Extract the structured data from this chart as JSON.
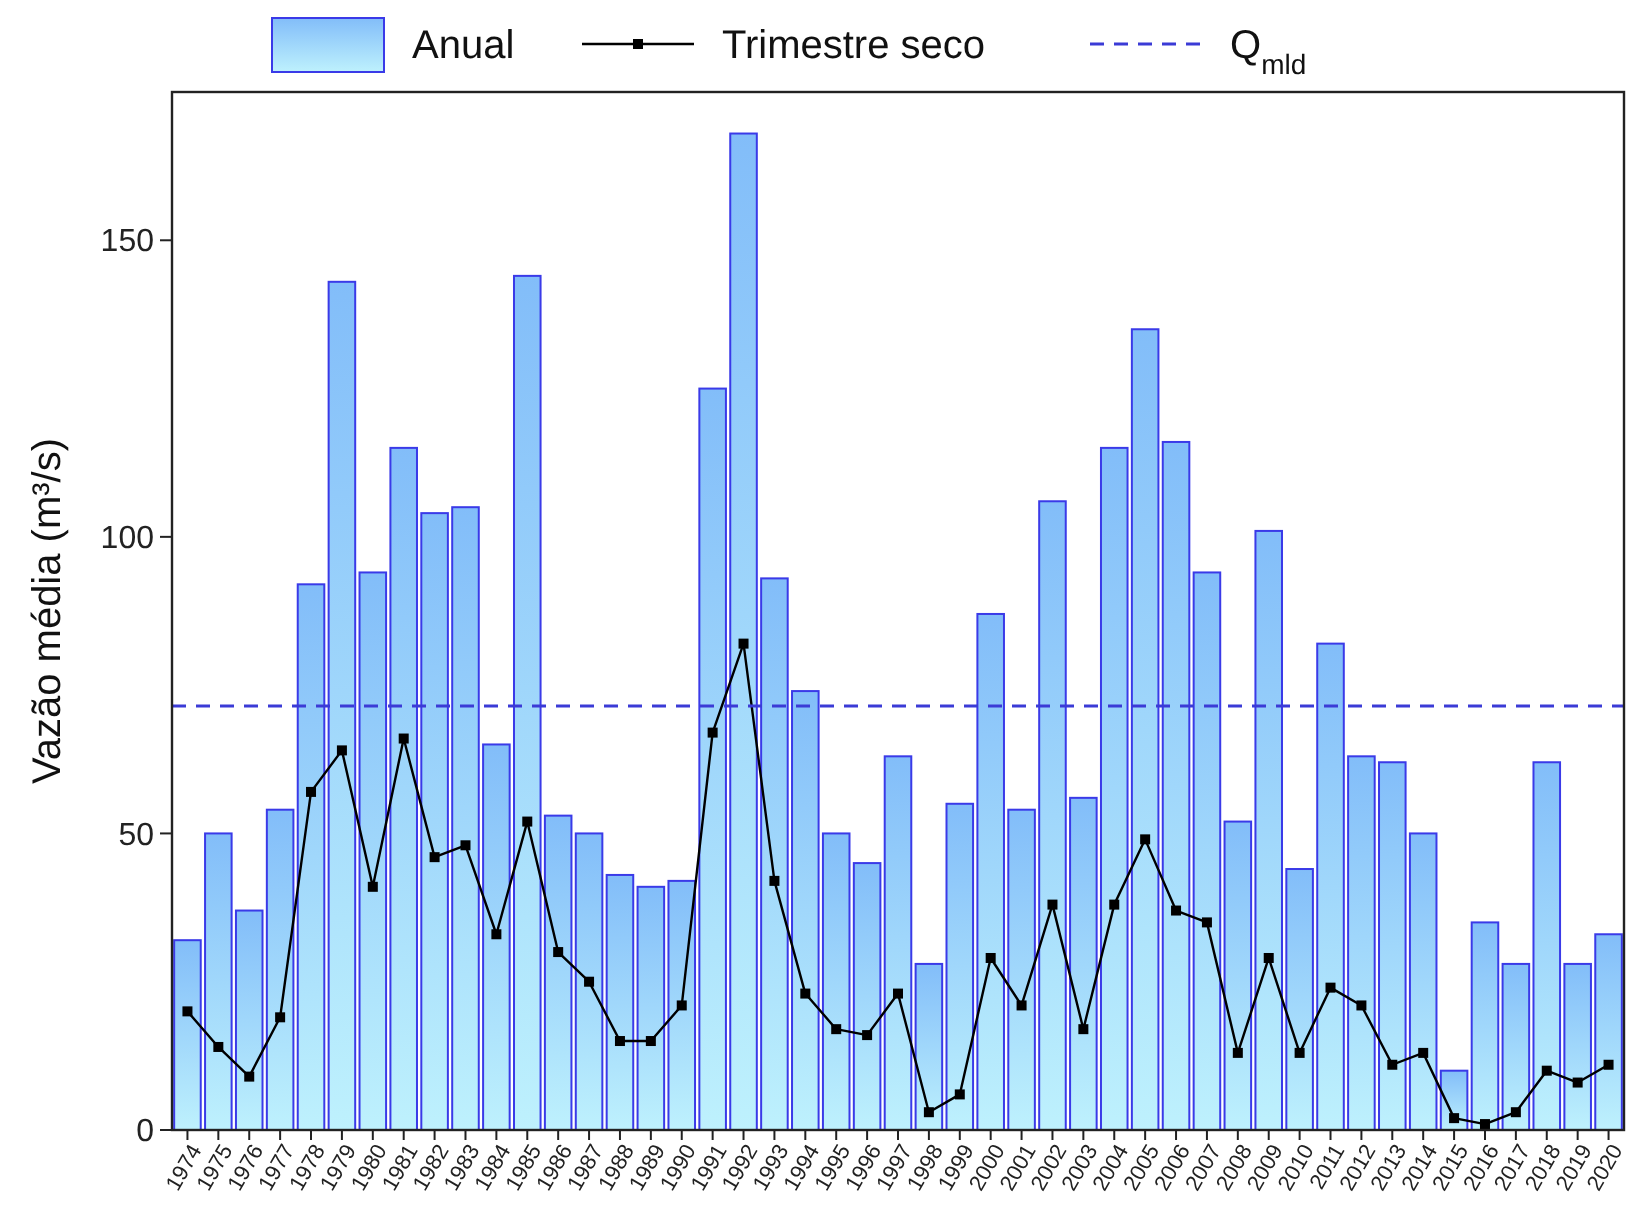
{
  "chart_data": {
    "type": "bar",
    "ylabel": "Vazão média (m³/s)",
    "categories": [
      "1974",
      "1975",
      "1976",
      "1977",
      "1978",
      "1979",
      "1980",
      "1981",
      "1982",
      "1983",
      "1984",
      "1985",
      "1986",
      "1987",
      "1988",
      "1989",
      "1990",
      "1991",
      "1992",
      "1993",
      "1994",
      "1995",
      "1996",
      "1997",
      "1998",
      "1999",
      "2000",
      "2001",
      "2002",
      "2003",
      "2004",
      "2005",
      "2006",
      "2007",
      "2008",
      "2009",
      "2010",
      "2011",
      "2012",
      "2013",
      "2014",
      "2015",
      "2016",
      "2017",
      "2018",
      "2019",
      "2020"
    ],
    "series": [
      {
        "name": "Anual",
        "color": "#3a3ae8",
        "values": [
          32,
          50,
          37,
          54,
          92,
          143,
          94,
          115,
          104,
          105,
          65,
          144,
          53,
          50,
          43,
          41,
          42,
          125,
          168,
          93,
          74,
          50,
          45,
          63,
          28,
          55,
          87,
          54,
          106,
          56,
          115,
          135,
          116,
          94,
          52,
          101,
          44,
          82,
          63,
          62,
          50,
          10,
          35,
          28,
          62,
          28,
          33
        ]
      },
      {
        "name": "Trimestre seco",
        "type": "line",
        "color": "#000000",
        "marker": "square",
        "values": [
          20,
          14,
          9,
          19,
          57,
          64,
          41,
          66,
          46,
          48,
          33,
          52,
          30,
          25,
          15,
          15,
          21,
          67,
          82,
          42,
          23,
          17,
          16,
          23,
          3,
          6,
          29,
          21,
          38,
          17,
          38,
          49,
          37,
          35,
          13,
          29,
          13,
          24,
          21,
          11,
          13,
          2,
          1,
          3,
          10,
          8,
          11
        ]
      }
    ],
    "ref_lines": [
      {
        "axis": "y",
        "value": 71.5,
        "label": "Q$_{mld}$",
        "color": "#3b3bd6",
        "line_style": "dashed"
      }
    ],
    "ylim": [
      0,
      175
    ],
    "yticks": [
      0,
      50,
      100,
      150
    ],
    "legend": "top",
    "grid": false
  }
}
